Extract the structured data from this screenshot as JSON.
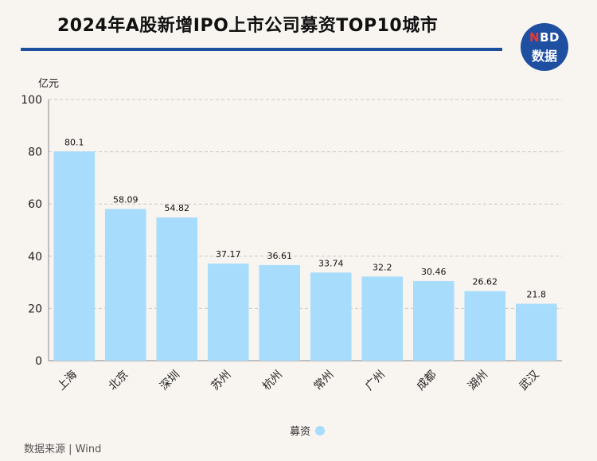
{
  "title": "2024年A股新增IPO上市公司募资TOP10城市",
  "logo": {
    "line1_n": "N",
    "line1_rest": "BD",
    "line2": "数据"
  },
  "source": "数据来源 | Wind",
  "colors": {
    "bar": "#a8dcfc",
    "title_rule": "#1c4f9c",
    "logo_bg": "#1f4fa0"
  },
  "chart_data": {
    "type": "bar",
    "title": "2024年A股新增IPO上市公司募资TOP10城市",
    "xlabel": "",
    "ylabel": "亿元",
    "ylim": [
      0,
      100
    ],
    "yticks": [
      0,
      20,
      40,
      60,
      80,
      100
    ],
    "grid": true,
    "legend": "bottom-center",
    "categories": [
      "上海",
      "北京",
      "深圳",
      "苏州",
      "杭州",
      "常州",
      "广州",
      "成都",
      "湖州",
      "武汉"
    ],
    "series": [
      {
        "name": "募资",
        "values": [
          80.1,
          58.09,
          54.82,
          37.17,
          36.61,
          33.74,
          32.2,
          30.46,
          26.62,
          21.8
        ],
        "labels": [
          "80.1",
          "58.09",
          "54.82",
          "37.17",
          "36.61",
          "33.74",
          "32.2",
          "30.46",
          "26.62",
          "21.8"
        ]
      }
    ]
  }
}
